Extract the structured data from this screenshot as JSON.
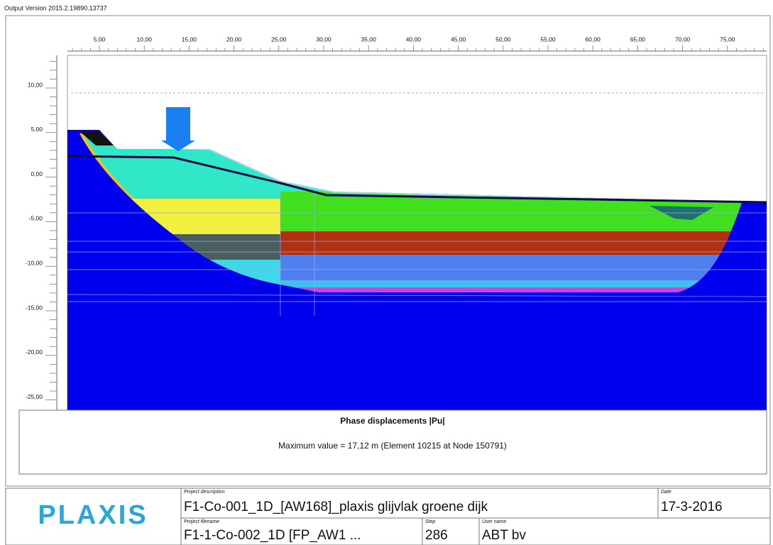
{
  "header": {
    "version": "Output Version 2015.2.19890.13737"
  },
  "plot": {
    "x_axis_labels": [
      "5,00",
      "10,00",
      "15,00",
      "20,00",
      "25,00",
      "30,00",
      "35,00",
      "40,00",
      "45,00",
      "50,00",
      "55,00",
      "60,00",
      "65,00",
      "70,00",
      "75,00"
    ],
    "y_axis_labels": [
      "10,00",
      "5,00",
      "0,00",
      "-5,00",
      "-10,00",
      "-15,00",
      "-20,00",
      "-25,00"
    ]
  },
  "results": {
    "title": "Phase displacements |Pu|",
    "max_value": "Maximum value = 17,12 m (Element 10215 at Node 150791)"
  },
  "footer": {
    "logo": "PLAXIS",
    "project_description": {
      "label": "Project description",
      "value": "F1-Co-001_1D_[AW168]_plaxis glijvlak groene dijk"
    },
    "date": {
      "label": "Date",
      "value": "17-3-2016"
    },
    "project_filename": {
      "label": "Project filename",
      "value": "F1-1-Co-002_1D [FP_AW1 ..."
    },
    "step": {
      "label": "Step",
      "value": "286"
    },
    "user_name": {
      "label": "User name",
      "value": "ABT bv"
    }
  }
}
